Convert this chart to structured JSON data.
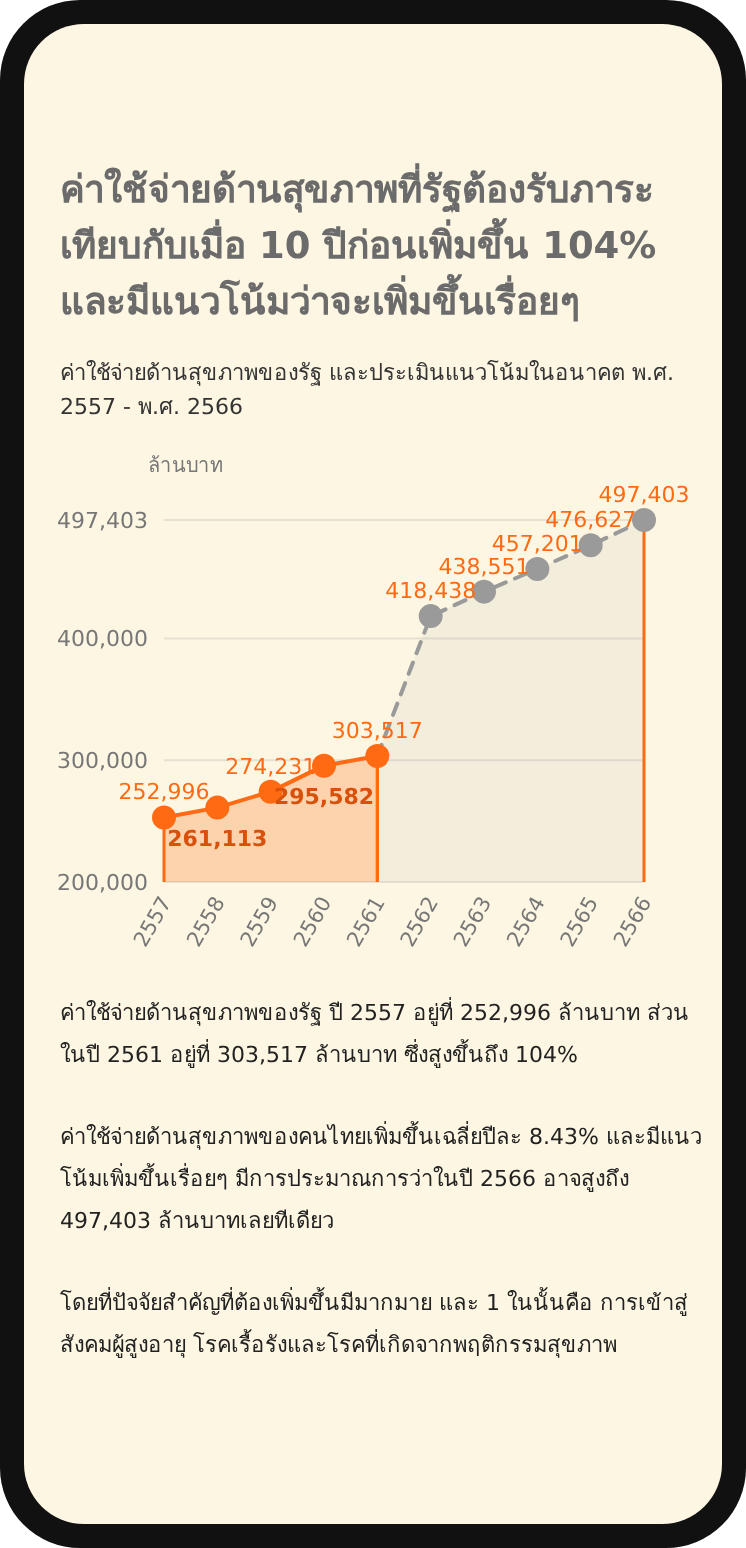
{
  "chart_data": {
    "type": "area",
    "title": "ค่าใช้จ่ายด้านสุขภาพที่รัฐต้องรับภาระเทียบกับเมื่อ 10 ปีก่อนเพิ่มขึ้น 104% และมีแนวโน้มว่าจะเพิ่มขึ้นเรื่อยๆ",
    "subtitle": "ค่าใช้จ่ายด้านสุขภาพของรัฐ และประเมินแนวโน้มในอนาคต พ.ศ. 2557 - พ.ศ. 2566",
    "ylabel": "ล้านบาท",
    "categories": [
      "2557",
      "2558",
      "2559",
      "2560",
      "2561",
      "2562",
      "2563",
      "2564",
      "2565",
      "2566"
    ],
    "series": [
      {
        "color": "#ff6a13",
        "line_style": "solid",
        "values": [
          252996,
          261113,
          274231,
          295582,
          303517,
          null,
          null,
          null,
          null,
          null
        ],
        "value_labels": [
          "252,996",
          "261,113",
          "274,231",
          "295,582",
          "303,517",
          null,
          null,
          null,
          null,
          null
        ]
      },
      {
        "color": "#9a9a9a",
        "line_style": "dashed",
        "values": [
          null,
          null,
          null,
          null,
          303517,
          418438,
          438551,
          457201,
          476627,
          497403
        ],
        "value_labels": [
          null,
          null,
          null,
          null,
          null,
          "418,438",
          "438,551",
          "457,201",
          "476,627",
          "497,403"
        ]
      }
    ],
    "ylim": [
      200000,
      497403
    ],
    "yticks": [
      {
        "value": 200000,
        "label": "200,000"
      },
      {
        "value": 300000,
        "label": "300,000"
      },
      {
        "value": 400000,
        "label": "400,000"
      },
      {
        "value": 497403,
        "label": "497,403"
      }
    ],
    "grid": "y",
    "marker": "circle",
    "annotations": [
      "ค่าใช้จ่ายด้านสุขภาพของรัฐ ปี 2557 อยู่ที่ 252,996 ล้านบาท ส่วนในปี 2561 อยู่ที่ 303,517 ล้านบาท ซึ่งสูงขึ้นถึง 104%",
      "ค่าใช้จ่ายด้านสุขภาพของคนไทยเพิ่มขึ้นเฉลี่ยปีละ 8.43% และมีแนวโน้มเพิ่มขึ้นเรื่อยๆ มีการประมาณการว่าในปี 2566 อาจสูงถึง 497,403 ล้านบาทเลยทีเดียว",
      "โดยที่ปัจจัยสำคัญที่ต้องเพิ่มขึ้นมีมากมาย และ 1 ในนั้นคือ การเข้าสู่สังคมผู้สูงอายุ โรคเรื้อรังและโรคที่เกิดจากพฤติกรรมสุขภาพ"
    ]
  }
}
